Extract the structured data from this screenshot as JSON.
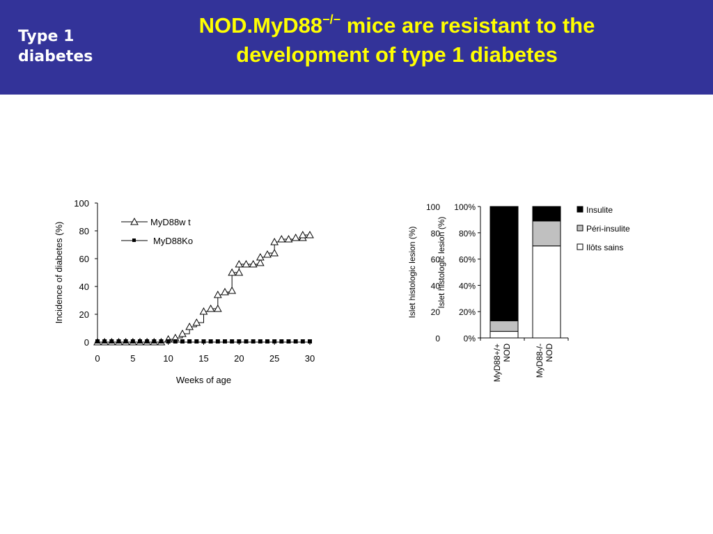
{
  "header": {
    "section_label_line1": "Type 1",
    "section_label_line2": "diabetes",
    "title_main": "NOD.MyD88",
    "title_superscript": "−/−",
    "title_rest": " mice are resistant to the",
    "title_line2": "development of type 1 diabetes"
  },
  "colors": {
    "header_bg": "#333399",
    "title": "#ffff00",
    "section_label": "#ffffff"
  },
  "chart_data": [
    {
      "type": "line",
      "xlabel": "Weeks of age",
      "ylabel": "Incidence of diabetes (%)",
      "xlim": [
        0,
        30
      ],
      "ylim": [
        0,
        100
      ],
      "x_ticks": [
        "0",
        "5",
        "10",
        "15",
        "20",
        "25",
        "30"
      ],
      "y_ticks": [
        "0",
        "20",
        "40",
        "60",
        "80",
        "100"
      ],
      "grid": false,
      "legend_position": "top-left",
      "series": [
        {
          "name": "MyD88w t",
          "marker": "open-triangle",
          "step": true,
          "points": [
            [
              0,
              0
            ],
            [
              1,
              0
            ],
            [
              2,
              0
            ],
            [
              3,
              0
            ],
            [
              4,
              0
            ],
            [
              5,
              0
            ],
            [
              6,
              0
            ],
            [
              7,
              0
            ],
            [
              8,
              0
            ],
            [
              9,
              0
            ],
            [
              10,
              0
            ],
            [
              10,
              2
            ],
            [
              11,
              2
            ],
            [
              11,
              3
            ],
            [
              12,
              3
            ],
            [
              12,
              6
            ],
            [
              13,
              6
            ],
            [
              13,
              11
            ],
            [
              14,
              11
            ],
            [
              14,
              14
            ],
            [
              15,
              14
            ],
            [
              15,
              22
            ],
            [
              16,
              22
            ],
            [
              16,
              24
            ],
            [
              17,
              24
            ],
            [
              17,
              34
            ],
            [
              18,
              34
            ],
            [
              18,
              36
            ],
            [
              19,
              36
            ],
            [
              19,
              50
            ],
            [
              20,
              50
            ],
            [
              20,
              56
            ],
            [
              21,
              56
            ],
            [
              22,
              56
            ],
            [
              23,
              56
            ],
            [
              23,
              61
            ],
            [
              24,
              61
            ],
            [
              24,
              64
            ],
            [
              25,
              64
            ],
            [
              25,
              72
            ],
            [
              26,
              72
            ],
            [
              26,
              74
            ],
            [
              27,
              74
            ],
            [
              28,
              74
            ],
            [
              29,
              74
            ],
            [
              29,
              77
            ],
            [
              30,
              77
            ]
          ],
          "marker_points": [
            [
              0,
              0
            ],
            [
              1,
              0
            ],
            [
              2,
              0
            ],
            [
              3,
              0
            ],
            [
              4,
              0
            ],
            [
              5,
              0
            ],
            [
              6,
              0
            ],
            [
              7,
              0
            ],
            [
              8,
              0
            ],
            [
              9,
              0
            ],
            [
              10,
              2
            ],
            [
              11,
              3
            ],
            [
              12,
              6
            ],
            [
              13,
              11
            ],
            [
              14,
              14
            ],
            [
              15,
              22
            ],
            [
              16,
              24
            ],
            [
              17,
              24
            ],
            [
              17,
              34
            ],
            [
              18,
              36
            ],
            [
              19,
              37
            ],
            [
              19,
              50
            ],
            [
              20,
              50
            ],
            [
              20,
              56
            ],
            [
              21,
              56
            ],
            [
              22,
              56
            ],
            [
              23,
              57
            ],
            [
              23,
              61
            ],
            [
              24,
              63
            ],
            [
              25,
              64
            ],
            [
              25,
              72
            ],
            [
              26,
              74
            ],
            [
              27,
              74
            ],
            [
              28,
              75
            ],
            [
              29,
              75
            ],
            [
              29,
              77
            ],
            [
              30,
              77
            ]
          ]
        },
        {
          "name": "MyD88Ko",
          "marker": "filled-square",
          "step": false,
          "points": [
            [
              0,
              0
            ],
            [
              1,
              0
            ],
            [
              2,
              0
            ],
            [
              3,
              0
            ],
            [
              4,
              0
            ],
            [
              5,
              0
            ],
            [
              6,
              0
            ],
            [
              7,
              0
            ],
            [
              8,
              0
            ],
            [
              9,
              0
            ],
            [
              10,
              0
            ],
            [
              11,
              0
            ],
            [
              12,
              0
            ],
            [
              13,
              0
            ],
            [
              14,
              0
            ],
            [
              15,
              0
            ],
            [
              16,
              0
            ],
            [
              17,
              0
            ],
            [
              18,
              0
            ],
            [
              19,
              0
            ],
            [
              20,
              0
            ],
            [
              21,
              0
            ],
            [
              22,
              0
            ],
            [
              23,
              0
            ],
            [
              24,
              0
            ],
            [
              25,
              0
            ],
            [
              26,
              0
            ],
            [
              27,
              0
            ],
            [
              28,
              0
            ],
            [
              29,
              0
            ],
            [
              30,
              0
            ]
          ]
        }
      ]
    },
    {
      "type": "bar",
      "stacked": "percent",
      "ylabel": "Islet histologic lesion (%)",
      "y_ticks_left": [
        "0",
        "20",
        "40",
        "60",
        "80",
        "100"
      ],
      "y_ticks_right": [
        "0%",
        "20%",
        "40%",
        "60%",
        "80%",
        "100%"
      ],
      "ylim": [
        0,
        100
      ],
      "categories": [
        "MyD88+/+ NOD",
        "MyD88-/- NOD"
      ],
      "category_lines": [
        [
          "MyD88+/+",
          "NOD"
        ],
        [
          "MyD88-/-",
          "NOD"
        ]
      ],
      "legend_position": "right",
      "series": [
        {
          "name": "Ilôts sains",
          "color": "#ffffff",
          "values": [
            5,
            70
          ]
        },
        {
          "name": "Péri-insulite",
          "color": "#c0c0c0",
          "values": [
            8,
            19
          ]
        },
        {
          "name": "Insulite",
          "color": "#000000",
          "values": [
            87,
            11
          ]
        }
      ],
      "legend_order": [
        "Insulite",
        "Péri-insulite",
        "Ilôts sains"
      ]
    }
  ]
}
